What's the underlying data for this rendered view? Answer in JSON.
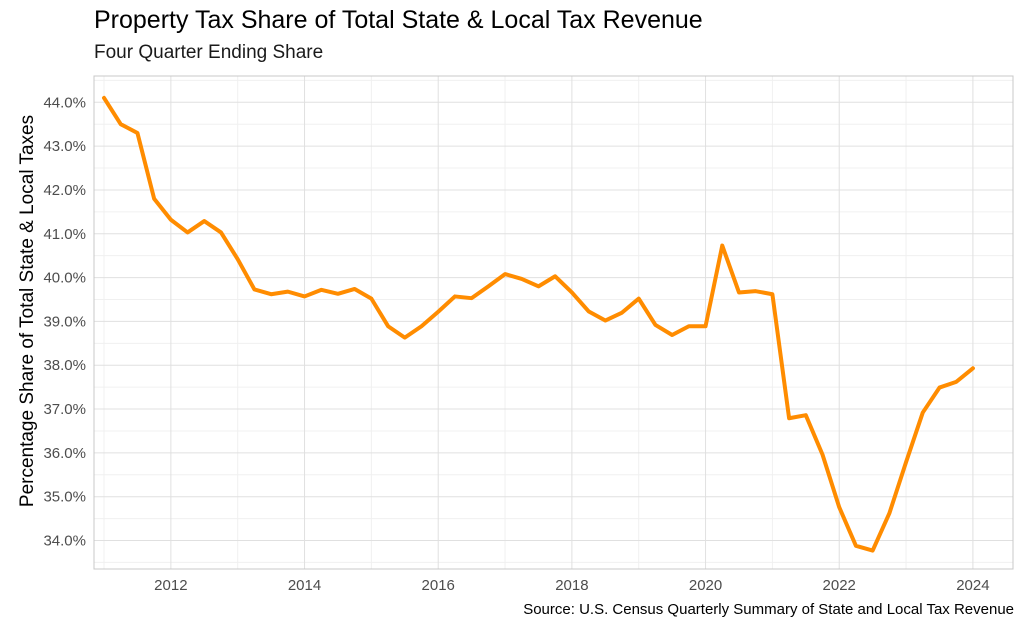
{
  "chart_data": {
    "type": "line",
    "title": "Property Tax Share of Total State & Local Tax Revenue",
    "subtitle": "Four Quarter Ending Share",
    "ylabel": "Percentage Share of Total State & Local Taxes",
    "xlabel": "",
    "caption": "Source: U.S. Census Quarterly Summary of State and Local Tax Revenue",
    "line_color": "#FF8C00",
    "grid": true,
    "xlim": [
      2010.85,
      2024.6
    ],
    "ylim": [
      33.35,
      44.6
    ],
    "x_ticks": [
      2012,
      2014,
      2016,
      2018,
      2020,
      2022,
      2024
    ],
    "y_ticks": [
      34,
      35,
      36,
      37,
      38,
      39,
      40,
      41,
      42,
      43,
      44
    ],
    "y_tick_labels": [
      "34.0%",
      "35.0%",
      "36.0%",
      "37.0%",
      "38.0%",
      "39.0%",
      "40.0%",
      "41.0%",
      "42.0%",
      "43.0%",
      "44.0%"
    ],
    "x_tick_labels": [
      "2012",
      "2014",
      "2016",
      "2018",
      "2020",
      "2022",
      "2024"
    ],
    "series": [
      {
        "x": [
          2011.0,
          2011.25,
          2011.5,
          2011.75,
          2012.0,
          2012.25,
          2012.5,
          2012.75,
          2013.0,
          2013.25,
          2013.5,
          2013.75,
          2014.0,
          2014.25,
          2014.5,
          2014.75,
          2015.0,
          2015.25,
          2015.5,
          2015.75,
          2016.0,
          2016.25,
          2016.5,
          2016.75,
          2017.0,
          2017.25,
          2017.5,
          2017.75,
          2018.0,
          2018.25,
          2018.5,
          2018.75,
          2019.0,
          2019.25,
          2019.5,
          2019.75,
          2020.0,
          2020.25,
          2020.5,
          2020.75,
          2021.0,
          2021.25,
          2021.5,
          2021.75,
          2022.0,
          2022.25,
          2022.5,
          2022.75,
          2023.0,
          2023.25,
          2023.5,
          2023.75,
          2024.0
        ],
        "y": [
          44.1,
          43.5,
          43.3,
          41.8,
          41.32,
          41.03,
          41.29,
          41.03,
          40.42,
          39.73,
          39.62,
          39.68,
          39.57,
          39.72,
          39.63,
          39.74,
          39.52,
          38.89,
          38.63,
          38.89,
          39.22,
          39.57,
          39.53,
          39.8,
          40.08,
          39.97,
          39.8,
          40.03,
          39.66,
          39.23,
          39.02,
          39.2,
          39.52,
          38.92,
          38.69,
          38.89,
          38.89,
          40.73,
          39.66,
          39.69,
          39.62,
          36.79,
          36.86,
          35.96,
          34.76,
          33.88,
          33.77,
          34.62,
          35.79,
          36.92,
          37.49,
          37.62,
          37.93
        ]
      }
    ]
  }
}
